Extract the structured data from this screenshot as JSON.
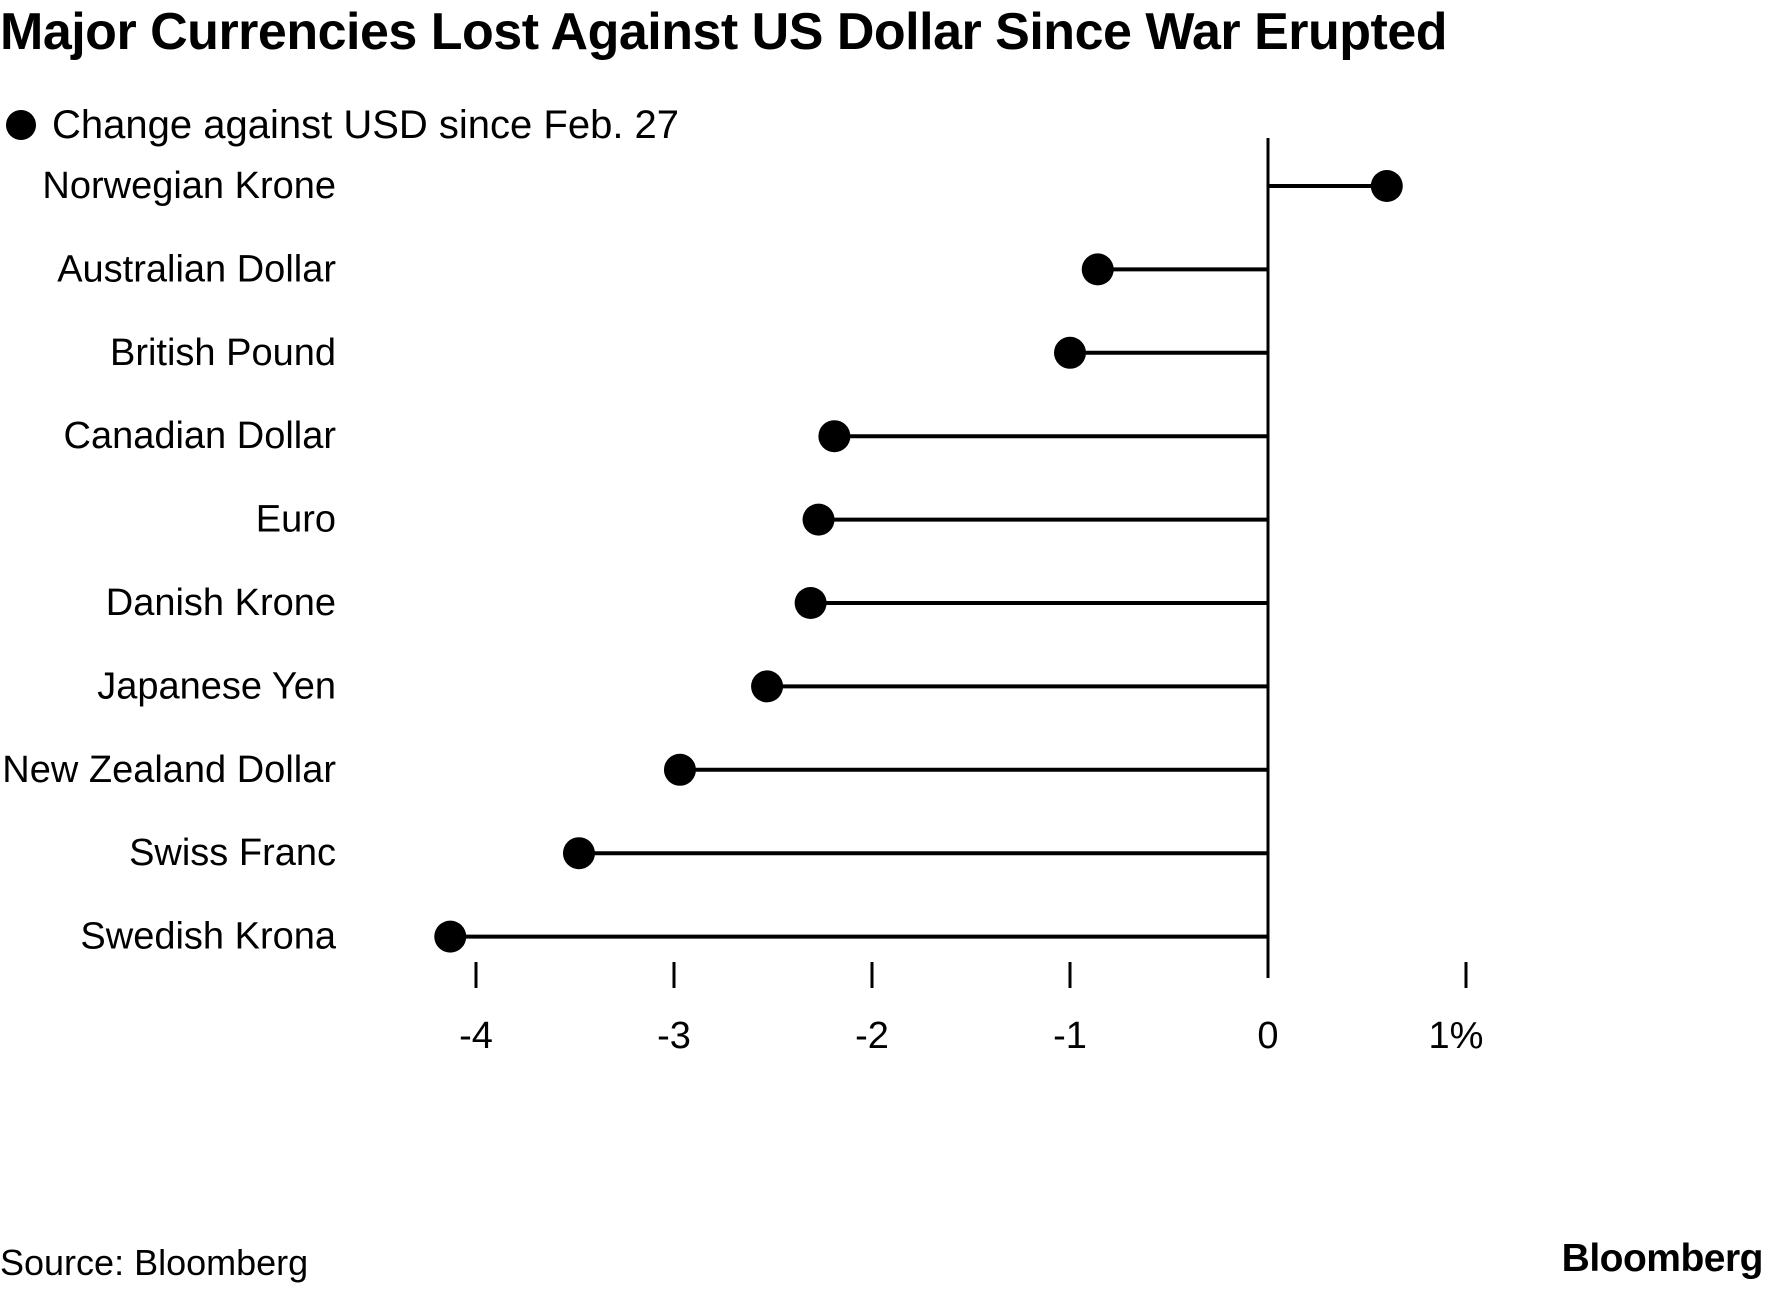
{
  "chart_data": {
    "type": "lollipop",
    "orientation": "horizontal",
    "title": "Major Currencies Lost Against US Dollar Since War Erupted",
    "legend": {
      "label": "Change against USD since Feb. 27",
      "placement": "top-left"
    },
    "categories": [
      "Norwegian Krone",
      "Australian Dollar",
      "British Pound",
      "Canadian Dollar",
      "Euro",
      "Danish Krone",
      "Japanese Yen",
      "New Zealand Dollar",
      "Swiss Franc",
      "Swedish Krona"
    ],
    "values": [
      0.6,
      -0.86,
      -1.0,
      -2.19,
      -2.27,
      -2.31,
      -2.53,
      -2.97,
      -3.48,
      -4.13
    ],
    "xlim": [
      -4.5,
      1
    ],
    "xticks": [
      -4,
      -3,
      -2,
      -1,
      0,
      1
    ],
    "xtick_labels": [
      "-4",
      "-3",
      "-2",
      "-1",
      "0",
      "1%"
    ],
    "grid": false,
    "color": "#000000"
  },
  "footer": {
    "source": "Source: Bloomberg",
    "brand": "Bloomberg"
  }
}
